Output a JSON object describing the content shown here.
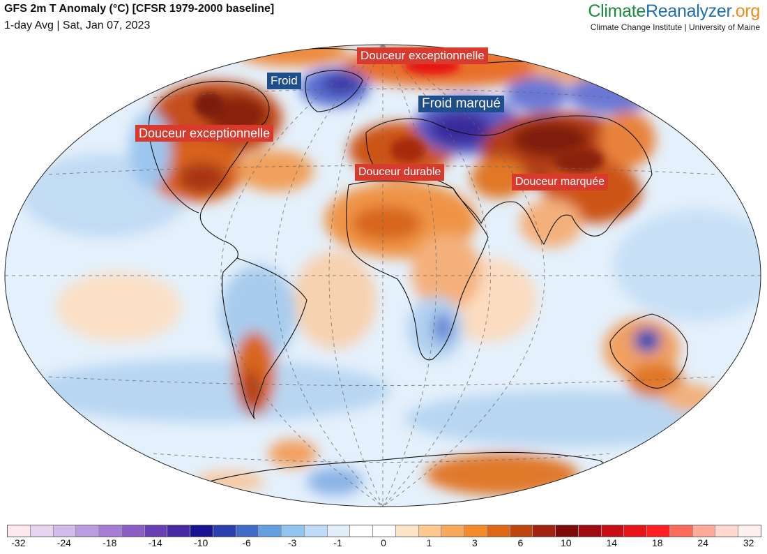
{
  "header": {
    "title": "GFS 2m T Anomaly (°C) [CFSR 1979-2000 baseline]",
    "subtitle": "1-day Avg | Sat, Jan 07, 2023"
  },
  "brand": {
    "part1": "Climate",
    "part2": "Reanalyzer",
    "part3": ".org",
    "subtitle": "Climate Change Institute | University of Maine",
    "colors": {
      "part1": "#1a8a3c",
      "part2": "#1f6fb5",
      "part3": "#f08a1c"
    }
  },
  "annotations": [
    {
      "id": "arctic-warm",
      "text": "Douceur exceptionnelle",
      "kind": "warm"
    },
    {
      "id": "greenland-cold",
      "text": "Froid",
      "kind": "cold"
    },
    {
      "id": "russia-cold",
      "text": "Froid marqué",
      "kind": "cold"
    },
    {
      "id": "namerica-warm",
      "text": "Douceur exceptionnelle",
      "kind": "warm"
    },
    {
      "id": "europe-warm",
      "text": "Douceur durable",
      "kind": "warm"
    },
    {
      "id": "asia-warm",
      "text": "Douceur marquée",
      "kind": "warm"
    }
  ],
  "colorbar": {
    "swatches": [
      "#fce8ee",
      "#e6d4f0",
      "#d2baea",
      "#bc9ce0",
      "#a67cd4",
      "#8a5cc4",
      "#6a3eb4",
      "#4a2aa4",
      "#1a1494",
      "#2a40b0",
      "#3e6cc8",
      "#64a0e0",
      "#92c4f0",
      "#bedcf6",
      "#e2eefa",
      "#ffffff",
      "#ffffff",
      "#fde4c6",
      "#fcc890",
      "#f9a85a",
      "#f58a28",
      "#e06614",
      "#c0440e",
      "#a22410",
      "#7e0a0a",
      "#a00a10",
      "#c80e14",
      "#e8141a",
      "#ff2020",
      "#ff6a5a",
      "#ffaa98",
      "#ffd8d0",
      "#fff0f0"
    ],
    "tick_labels": [
      "-32",
      "-24",
      "-18",
      "-14",
      "-10",
      "-6",
      "-3",
      "-1",
      "0",
      "1",
      "3",
      "6",
      "10",
      "14",
      "18",
      "24",
      "32"
    ],
    "colors": {
      "warm_label": "#d93a2e",
      "cold_label": "#1f4e8c"
    }
  }
}
